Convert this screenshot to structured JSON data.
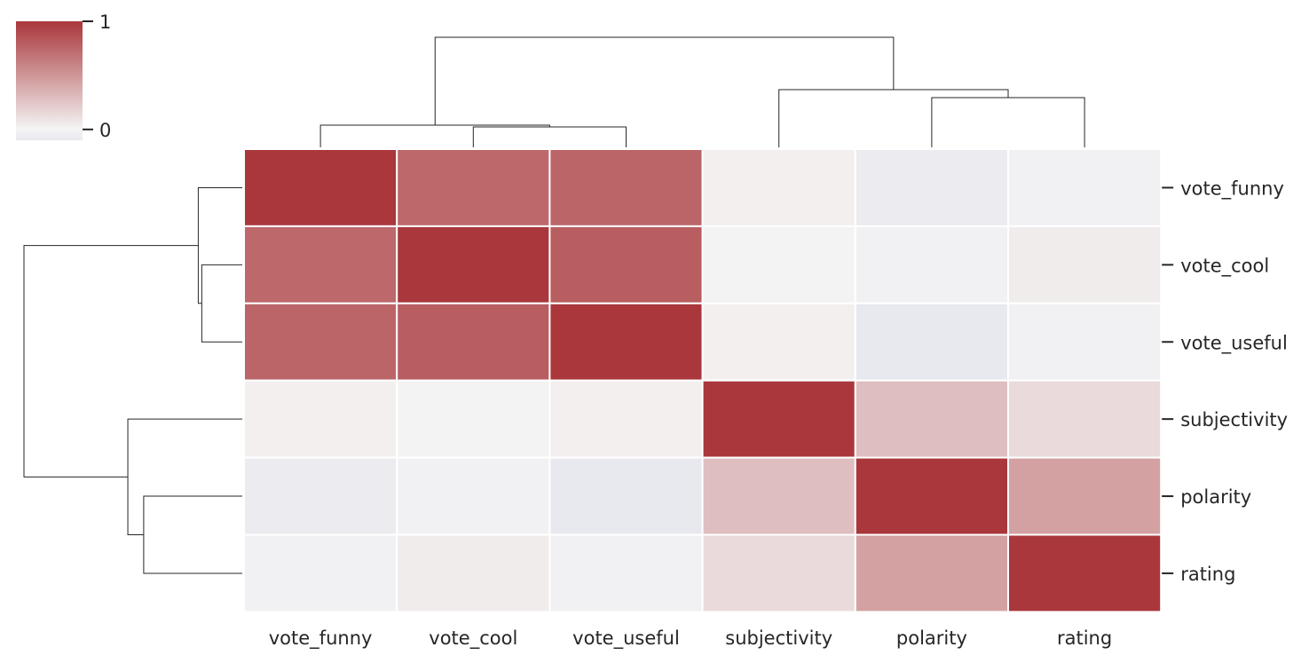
{
  "chart_data": {
    "type": "heatmap",
    "variant": "clustermap",
    "row_labels": [
      "vote_funny",
      "vote_cool",
      "vote_useful",
      "subjectivity",
      "polarity",
      "rating"
    ],
    "col_labels": [
      "vote_funny",
      "vote_cool",
      "vote_useful",
      "subjectivity",
      "polarity",
      "rating"
    ],
    "values": [
      [
        1.0,
        0.74,
        0.76,
        0.03,
        -0.08,
        -0.03
      ],
      [
        0.74,
        1.0,
        0.8,
        0.01,
        -0.03,
        0.05
      ],
      [
        0.76,
        0.8,
        1.0,
        0.03,
        -0.1,
        -0.03
      ],
      [
        0.03,
        0.01,
        0.03,
        1.0,
        0.29,
        0.14
      ],
      [
        -0.08,
        -0.03,
        -0.1,
        0.29,
        1.0,
        0.44
      ],
      [
        -0.03,
        0.05,
        -0.03,
        0.14,
        0.44,
        1.0
      ]
    ],
    "colorbar": {
      "tick_labels": [
        "0",
        "1"
      ],
      "tick_values": [
        0,
        1
      ],
      "vmin": -0.1,
      "vmax": 1.0,
      "colors": {
        "neg": "#e8e8ef",
        "mid": "#f5f5f5",
        "pos": "#a9373b"
      }
    },
    "col_dendrogram": {
      "merges": [
        {
          "left": "col:1",
          "right": "col:2",
          "height": 0.23
        },
        {
          "left": "col:0",
          "right": "node:0",
          "height": 0.25
        },
        {
          "left": "col:4",
          "right": "col:5",
          "height": 0.56
        },
        {
          "left": "col:3",
          "right": "node:2",
          "height": 0.65
        },
        {
          "left": "node:1",
          "right": "node:3",
          "height": 1.24
        }
      ]
    },
    "row_dendrogram": {
      "merges": [
        {
          "left": "row:1",
          "right": "row:2",
          "height": 0.23
        },
        {
          "left": "row:0",
          "right": "node:0",
          "height": 0.25
        },
        {
          "left": "row:4",
          "right": "row:5",
          "height": 0.56
        },
        {
          "left": "row:3",
          "right": "node:2",
          "height": 0.65
        },
        {
          "left": "node:1",
          "right": "node:3",
          "height": 1.24
        }
      ]
    }
  }
}
